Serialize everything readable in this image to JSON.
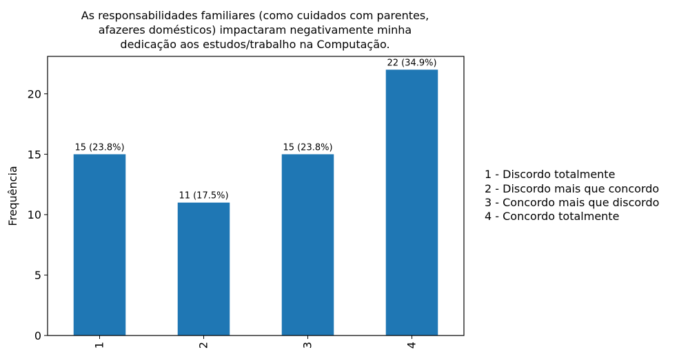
{
  "chart_data": {
    "type": "bar",
    "title_lines": [
      "As responsabilidades familiares (como cuidados com parentes,",
      "afazeres domésticos) impactaram negativamente minha",
      "dedicação aos estudos/trabalho na Computação."
    ],
    "categories": [
      "1",
      "2",
      "3",
      "4"
    ],
    "values": [
      15,
      11,
      15,
      22
    ],
    "bar_labels": [
      "15 (23.8%)",
      "11 (17.5%)",
      "15 (23.8%)",
      "22 (34.9%)"
    ],
    "xlabel": "",
    "ylabel": "Frequência",
    "ylim": [
      0,
      23.1
    ],
    "yticks": [
      0,
      5,
      10,
      15,
      20
    ],
    "grid": false,
    "bar_color": "#1f77b4",
    "legend_placement": "right, outside plot",
    "legend": [
      "1 - Discordo totalmente",
      "2 - Discordo mais que concordo",
      "3 - Concordo mais que discordo",
      "4 - Concordo totalmente"
    ]
  }
}
